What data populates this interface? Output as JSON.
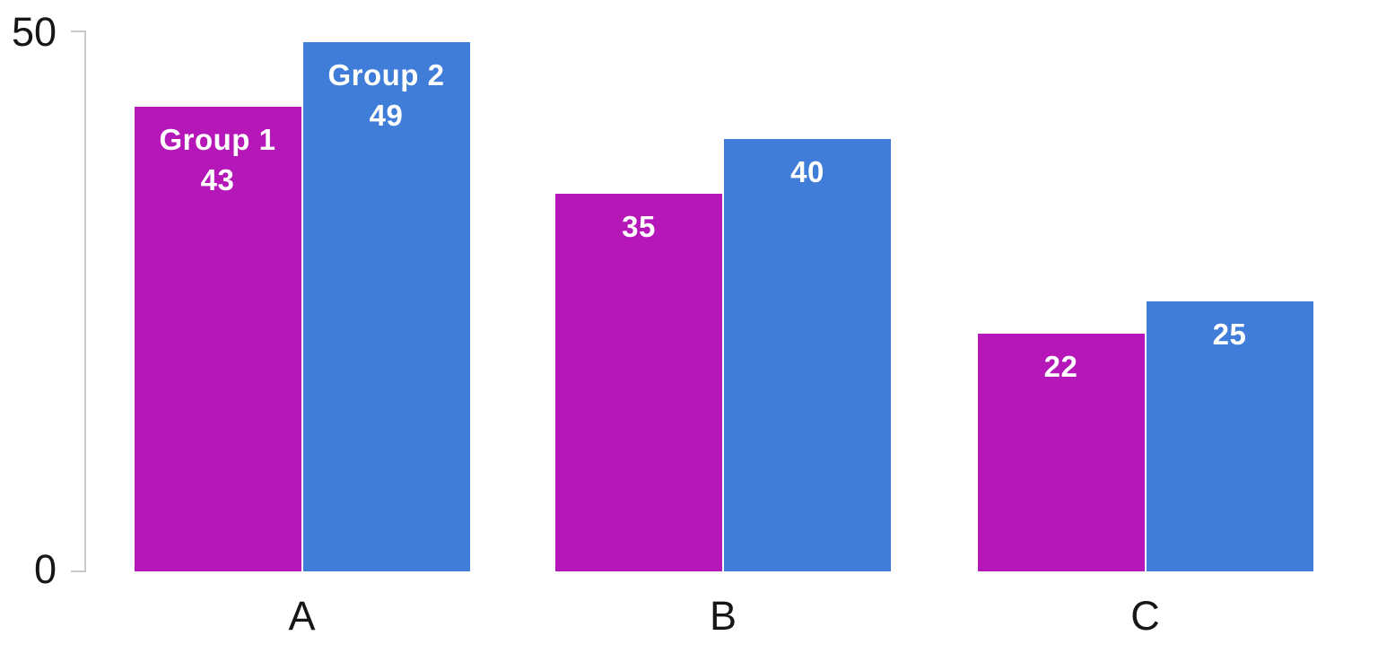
{
  "chart_data": {
    "type": "bar",
    "title": "",
    "categories": [
      "A",
      "B",
      "C"
    ],
    "series": [
      {
        "name": "Group 1",
        "color": "#b517b9",
        "values": [
          43,
          35,
          22
        ]
      },
      {
        "name": "Group 2",
        "color": "#3f7dd8",
        "values": [
          49,
          40,
          25
        ]
      }
    ],
    "ylim": [
      0,
      50
    ],
    "ytick_labels": [
      "50",
      "0"
    ],
    "xlabel": "",
    "ylabel": "",
    "grid": false,
    "legend_position": "inside-first-bars",
    "value_labels_on_bars": true,
    "series_names_shown_on_first_category": true
  },
  "axis_style": {
    "line_color": "#c9c9c9",
    "label_color": "#161616",
    "bar_label_color": "#ffffff"
  }
}
